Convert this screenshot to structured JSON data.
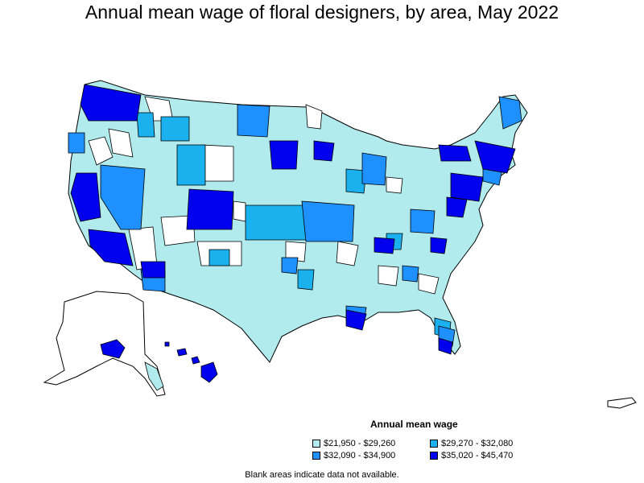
{
  "title": "Annual mean wage of floral designers, by area, May 2022",
  "legend": {
    "title": "Annual mean wage",
    "items": [
      {
        "label": "$21,950 - $29,260",
        "color": "#b2ebee"
      },
      {
        "label": "$29,270 - $32,080",
        "color": "#1ab1ee"
      },
      {
        "label": "$32,090 - $34,900",
        "color": "#1e90ff"
      },
      {
        "label": "$35,020 - $45,470",
        "color": "#0000ee"
      }
    ]
  },
  "footnote": "Blank areas indicate data not available.",
  "colors": {
    "no_data": "#ffffff",
    "border": "#000000"
  }
}
